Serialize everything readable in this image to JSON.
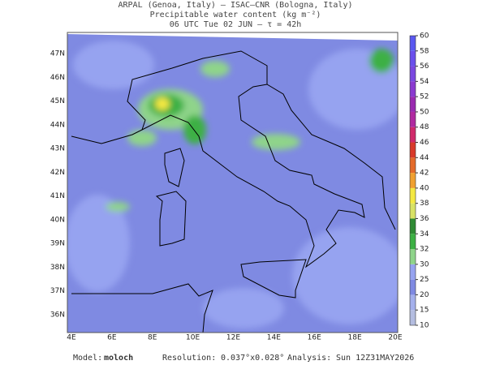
{
  "header": {
    "line1": "ARPAL (Genoa, Italy)  —  ISAC–CNR (Bologna, Italy)",
    "line2": "Precipitable water content (kg m⁻²)",
    "line3": "06 UTC Tue 02 JUN  —  τ = 42h"
  },
  "map": {
    "lon_labels": [
      "4E",
      "6E",
      "8E",
      "10E",
      "12E",
      "14E",
      "16E",
      "18E",
      "20E"
    ],
    "lat_labels": [
      "36N",
      "37N",
      "38N",
      "39N",
      "40N",
      "41N",
      "42N",
      "43N",
      "44N",
      "45N",
      "46N",
      "47N"
    ]
  },
  "colorbar": {
    "levels": [
      10,
      15,
      20,
      25,
      30,
      32,
      34,
      36,
      38,
      40,
      42,
      44,
      46,
      48,
      50,
      52,
      54,
      56,
      58,
      60
    ],
    "colors": [
      "#b4bde0",
      "#a4b0ec",
      "#7f8ae2",
      "#96a3f0",
      "#8fd48a",
      "#3cb044",
      "#2f8a34",
      "#d8e266",
      "#f4e842",
      "#f0a030",
      "#e46a2a",
      "#d83a2a",
      "#d02a6a",
      "#b02aa0",
      "#9a2ab0",
      "#8a3ad0",
      "#7a48e0",
      "#6a50ec",
      "#5a58f0"
    ]
  },
  "footer": {
    "model_label": "Model:",
    "model": "moloch",
    "resolution_label": "Resolution:",
    "resolution": "0.037°x0.028°",
    "analysis_label": "Analysis:",
    "analysis": "Sun 12Z31MAY2026"
  }
}
